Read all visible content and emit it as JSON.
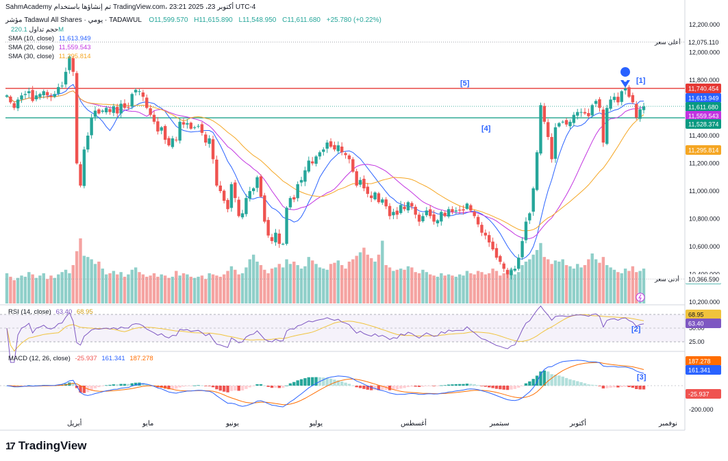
{
  "header": {
    "line1": "SahmAcademy تم إنشاؤها باستخدام TradingView.com، أكتوبر 23، 2025 23:21 UTC-4",
    "symbol": "مؤشر Tadawul All Shares · يومي · TADAWUL",
    "ohlc_o": "O11,599.570",
    "ohlc_h": "H11,615.890",
    "ohlc_l": "L11,548.950",
    "ohlc_c": "C11,611.680",
    "change": "+25.780 (+0.22%)"
  },
  "legends": {
    "volume": {
      "label": "حجم تداول",
      "value": "220.1M"
    },
    "sma10": {
      "label": "SMA (10, close)",
      "value": "11,613.949"
    },
    "sma20": {
      "label": "SMA (20, close)",
      "value": "11,559.543"
    },
    "sma30": {
      "label": "SMA (30, close)",
      "value": "11,295.814"
    },
    "rsi": {
      "label": "RSI (14, close)",
      "v1": "63.40",
      "v2": "68.95"
    },
    "macd": {
      "label": "MACD (12, 26, close)",
      "v1": "-25.937",
      "v2": "161.341",
      "v3": "187.278"
    }
  },
  "footer": {
    "brand": "TradingView"
  },
  "colors": {
    "up": "#26a69a",
    "down": "#ef5350",
    "volUp": "#8fcfc9",
    "volDown": "#f5a3a1",
    "sma10": "#2962ff",
    "sma20": "#c233e0",
    "sma30": "#f5a623",
    "resistance": "#e53935",
    "support": "#089981",
    "rsi": "#7e57c2",
    "rsiMa": "#f0c33c",
    "macd": "#2962ff",
    "signal": "#ff6d00",
    "annotation": "#2962ff"
  },
  "chart_data": {
    "type": "candlestick",
    "price_axis": {
      "ticks": [
        "12,200.000",
        "12,000.000",
        "11,800.000",
        "11,600.000",
        "11,400.000",
        "11,200.000",
        "11,000.000",
        "10,800.000",
        "10,600.000",
        "10,400.000",
        "10,200.000"
      ],
      "ylim": [
        10200,
        12200
      ]
    },
    "x_axis": {
      "labels": [
        "أبريل",
        "مايو",
        "يونيو",
        "يوليو",
        "أغسطس",
        "سبتمبر",
        "أكتوبر",
        "نوفمبر"
      ]
    },
    "levels": [
      {
        "name": "high",
        "label": "أعلى سعر",
        "value": 12075.11,
        "text": "12,075.110"
      },
      {
        "name": "resistance",
        "value": 11740.454,
        "text": "11,740.454"
      },
      {
        "name": "support",
        "value": 11528.374,
        "text": "11,528.374"
      },
      {
        "name": "low",
        "label": "أدنى سعر",
        "value": 10366.59,
        "text": "10,366.590"
      }
    ],
    "price_badges": [
      {
        "name": "sma10",
        "value": 11613.949,
        "text": "11,613.949"
      },
      {
        "name": "close",
        "value": 11611.68,
        "text": "11,611.680"
      },
      {
        "name": "sma20",
        "value": 11559.543,
        "text": "11,559.543"
      },
      {
        "name": "sma30",
        "value": 11295.814,
        "text": "11,295.814"
      },
      {
        "name": "volume",
        "text": "220.1M"
      }
    ],
    "annotations": [
      "[1]",
      "[2]",
      "[3]",
      "[4]",
      "[5]"
    ],
    "closes": [
      11690,
      11640,
      11600,
      11660,
      11690,
      11700,
      11720,
      11650,
      11690,
      11700,
      11720,
      11690,
      11680,
      11700,
      11750,
      11760,
      11860,
      11970,
      11860,
      11200,
      11040,
      11300,
      11400,
      11530,
      11580,
      11560,
      11580,
      11600,
      11570,
      11610,
      11560,
      11630,
      11600,
      11600,
      11700,
      11730,
      11720,
      11680,
      11600,
      11550,
      11500,
      11430,
      11460,
      11370,
      11330,
      11380,
      11370,
      11500,
      11480,
      11490,
      11450,
      11460,
      11470,
      11420,
      11350,
      11380,
      11230,
      11040,
      11000,
      10930,
      10870,
      11050,
      10950,
      10820,
      10840,
      10950,
      11000,
      11020,
      11100,
      10960,
      10780,
      10680,
      10640,
      10700,
      10620,
      10620,
      10880,
      10950,
      10940,
      11050,
      11080,
      11150,
      11220,
      11200,
      11250,
      11280,
      11300,
      11350,
      11320,
      11300,
      11330,
      11280,
      11260,
      11230,
      11140,
      11040,
      11080,
      11020,
      10980,
      10950,
      10990,
      10920,
      10940,
      10890,
      10820,
      10850,
      10830,
      10900,
      10870,
      10920,
      10890,
      10830,
      10780,
      10820,
      10860,
      10820,
      10780,
      10790,
      10850,
      10820,
      10870,
      10850,
      10860,
      10860,
      10860,
      10910,
      10860,
      10820,
      10760,
      10700,
      10680,
      10630,
      10580,
      10520,
      10490,
      10440,
      10400,
      10430,
      10440,
      10520,
      10640,
      10780,
      10840,
      11020,
      11280,
      11620,
      11500,
      11390,
      11230,
      11460,
      11490,
      11500,
      11480,
      11500,
      11550,
      11570,
      11570,
      11560,
      11540,
      11620,
      11650,
      11600,
      11350,
      11600,
      11660,
      11680,
      11640,
      11720,
      11740,
      11680,
      11640,
      11530,
      11590,
      11610
    ],
    "volumes": [
      260,
      230,
      200,
      220,
      240,
      230,
      270,
      250,
      220,
      240,
      260,
      210,
      240,
      220,
      250,
      270,
      290,
      260,
      330,
      450,
      560,
      410,
      400,
      380,
      340,
      360,
      300,
      250,
      260,
      280,
      250,
      270,
      230,
      250,
      290,
      310,
      270,
      250,
      230,
      240,
      260,
      230,
      250,
      240,
      220,
      230,
      280,
      240,
      260,
      250,
      230,
      220,
      230,
      240,
      210,
      260,
      250,
      240,
      230,
      250,
      280,
      320,
      290,
      250,
      260,
      310,
      380,
      420,
      360,
      330,
      290,
      260,
      300,
      310,
      340,
      310,
      380,
      340,
      360,
      330,
      300,
      320,
      400,
      370,
      340,
      310,
      300,
      290,
      340,
      350,
      370,
      330,
      300,
      360,
      380,
      410,
      440,
      480,
      420,
      390,
      360,
      420,
      540,
      330,
      310,
      280,
      290,
      300,
      290,
      320,
      310,
      270,
      260,
      290,
      270,
      250,
      240,
      230,
      260,
      240,
      250,
      240,
      230,
      250,
      240,
      280,
      260,
      250,
      280,
      270,
      250,
      260,
      300,
      280,
      240,
      260,
      290,
      300,
      250,
      270,
      330,
      360,
      380,
      420,
      460,
      520,
      400,
      380,
      340,
      370,
      360,
      380,
      330,
      320,
      300,
      340,
      310,
      330,
      380,
      430,
      380,
      350,
      400,
      330,
      310,
      290,
      270,
      260,
      300,
      280,
      320,
      270,
      280,
      300
    ]
  }
}
